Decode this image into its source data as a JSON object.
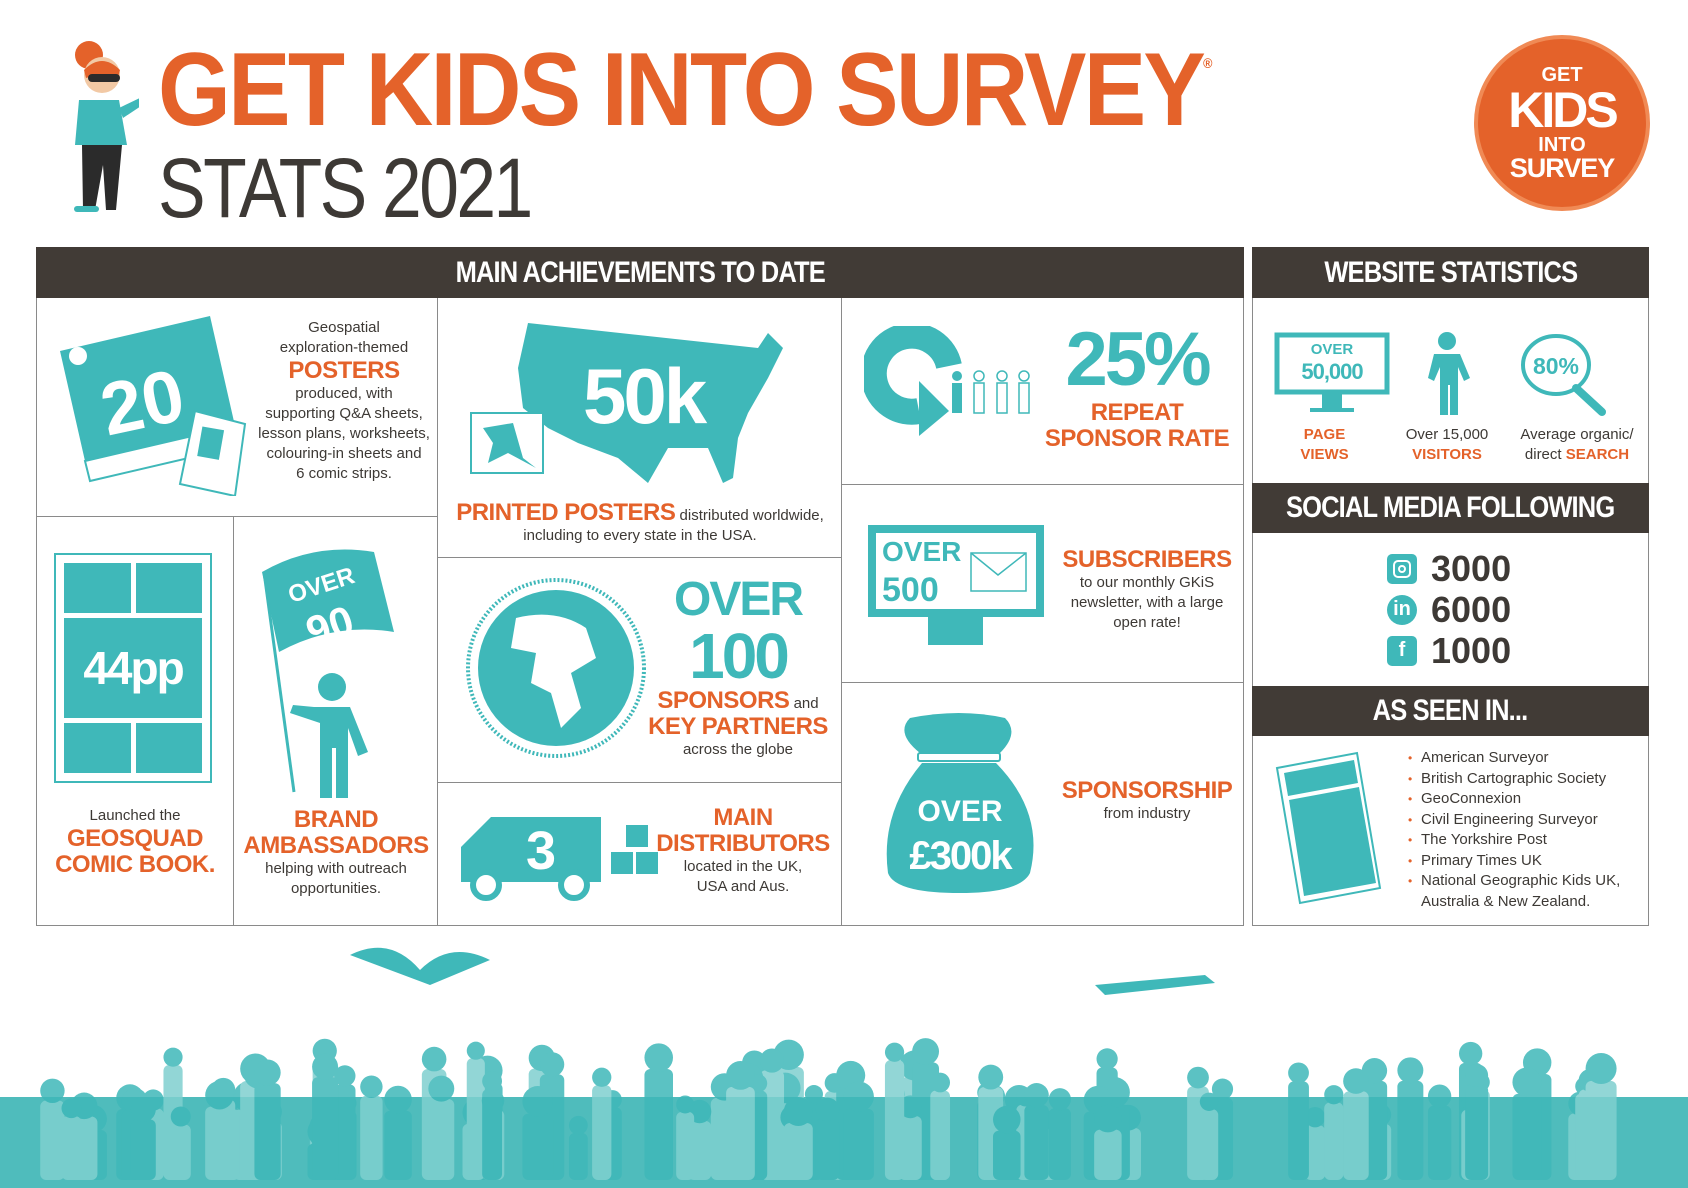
{
  "header": {
    "title": "GET KIDS INTO SURVEY",
    "registered": "®",
    "subtitle": "STATS 2021",
    "logo": {
      "line1": "GET",
      "line2": "KIDS",
      "line3": "INTO",
      "line4": "SURVEY"
    }
  },
  "colors": {
    "orange": "#e4622a",
    "teal": "#3fb8b9",
    "dark": "#413b36"
  },
  "main": {
    "heading": "MAIN ACHIEVEMENTS TO DATE",
    "posters": {
      "number": "20",
      "pre1": "Geospatial",
      "pre2": "exploration-themed",
      "label": "POSTERS",
      "post": [
        "produced, with",
        "supporting Q&A sheets,",
        "lesson plans, worksheets,",
        "colouring-in sheets and",
        "6 comic strips."
      ]
    },
    "comic": {
      "number": "44pp",
      "pre": "Launched the",
      "label1": "GEOSQUAD",
      "label2": "COMIC BOOK."
    },
    "ambassadors": {
      "over": "OVER",
      "number": "90",
      "label1": "BRAND",
      "label2": "AMBASSADORS",
      "post": [
        "helping with outreach",
        "opportunities."
      ]
    },
    "printed": {
      "number": "50k",
      "label": "PRINTED POSTERS",
      "post1": " distributed worldwide,",
      "post2": "including to every state in the USA."
    },
    "sponsors": {
      "over": "OVER",
      "number": "100",
      "label1": "SPONSORS",
      "and": " and",
      "label2": "KEY PARTNERS",
      "post": "across the globe"
    },
    "distributors": {
      "number": "3",
      "label1": "MAIN",
      "label2": "DISTRIBUTORS",
      "post": [
        "located in the UK,",
        "USA and Aus."
      ]
    },
    "repeat": {
      "number": "25%",
      "label1": "REPEAT",
      "label2": "SPONSOR RATE"
    },
    "subscribers": {
      "over": "OVER",
      "number": "500",
      "label": "SUBSCRIBERS",
      "post": [
        "to our  monthly GKiS",
        "newsletter, with a large",
        "open rate!"
      ]
    },
    "sponsorship": {
      "over": "OVER",
      "number": "£300k",
      "label": "SPONSORSHIP",
      "post": "from industry"
    }
  },
  "website": {
    "heading": "WEBSITE STATISTICS",
    "pageviews": {
      "over": "OVER",
      "number": "50,000",
      "label1": "PAGE",
      "label2": "VIEWS"
    },
    "visitors": {
      "pre": "Over 15,000",
      "label": "VISITORS"
    },
    "search": {
      "number": "80%",
      "pre1": "Average organic/",
      "pre2": "direct ",
      "label": "SEARCH"
    }
  },
  "social": {
    "heading": "SOCIAL MEDIA FOLLOWING",
    "items": [
      {
        "icon": "instagram-icon",
        "value": "3000"
      },
      {
        "icon": "linkedin-icon",
        "glyph": "in",
        "value": "6000"
      },
      {
        "icon": "facebook-icon",
        "glyph": "f",
        "value": "1000"
      }
    ]
  },
  "seen": {
    "heading": "AS SEEN IN...",
    "items": [
      "American Surveyor",
      "British Cartographic Society",
      "GeoConnexion",
      "Civil Engineering Surveyor",
      "The Yorkshire Post",
      "Primary Times UK",
      "National Geographic Kids UK,",
      "Australia & New Zealand."
    ]
  }
}
